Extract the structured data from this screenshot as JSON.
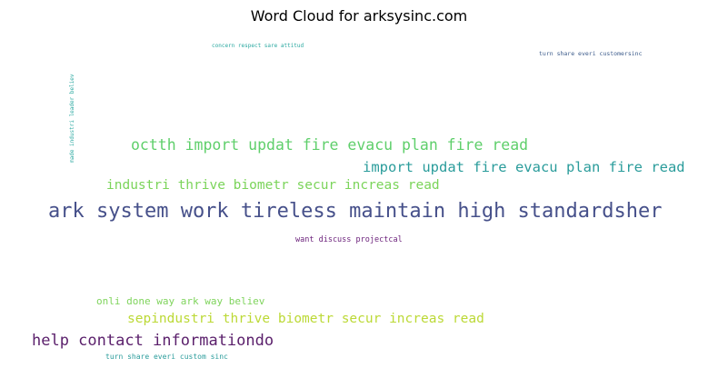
{
  "title": "Word Cloud for arksysinc.com",
  "words": [
    {
      "text": "ark system work tireless maintain high standardsher",
      "color": "#46508a",
      "rank": 1
    },
    {
      "text": "octth import updat fire evacu plan fire read",
      "color": "#5fcf6b",
      "rank": 2
    },
    {
      "text": "import updat fire evacu plan fire read",
      "color": "#2a9c9b",
      "rank": 3
    },
    {
      "text": "industri thrive biometr secur increas read",
      "color": "#7bd45a",
      "rank": 4
    },
    {
      "text": "help contact informationdo",
      "color": "#5a1f6b",
      "rank": 5
    },
    {
      "text": "sepindustri thrive biometr secur increas read",
      "color": "#bcd936",
      "rank": 6
    },
    {
      "text": "onli done way ark way believ",
      "color": "#7fd45c",
      "rank": 7
    },
    {
      "text": "want discuss projectcal",
      "color": "#6a1f7a",
      "rank": 8
    },
    {
      "text": "turn share everi custom sinc",
      "color": "#2a9c9b",
      "rank": 9
    },
    {
      "text": "concern respect sare attitud",
      "color": "#2aa8a0",
      "rank": 10
    },
    {
      "text": "turn share everi customersinc",
      "color": "#3a5a8a",
      "rank": 11
    },
    {
      "text": "made industri leader believ",
      "color": "#2aa8a0",
      "rank": 12
    }
  ]
}
